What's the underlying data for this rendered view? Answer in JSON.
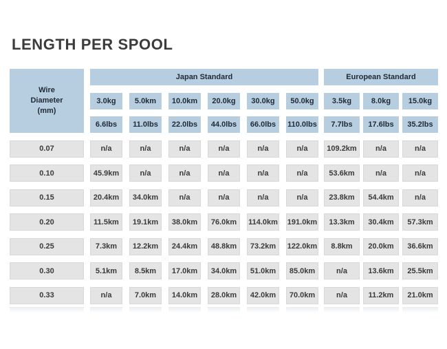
{
  "title": "LENGTH PER SPOOL",
  "colors": {
    "header_blue": "#b7cde0",
    "cell_gray": "#e4e4e4",
    "cell_border": "#d8d8d8",
    "header_text": "#1f2a35",
    "value_text": "#3a3a3a",
    "title_text": "#3b3b3b"
  },
  "table": {
    "corner_header": [
      "Wire",
      "Diameter",
      "(mm)"
    ],
    "groups": [
      {
        "label": "Japan Standard",
        "col_span": 6
      },
      {
        "label": "European Standard",
        "col_span": 3
      }
    ],
    "kg_headers": [
      "3.0kg",
      "5.0km",
      "10.0km",
      "20.0kg",
      "30.0kg",
      "50.0kg",
      "3.5kg",
      "8.0kg",
      "15.0kg"
    ],
    "lbs_headers": [
      "6.6lbs",
      "11.0lbs",
      "22.0lbs",
      "44.0lbs",
      "66.0lbs",
      "110.0lbs",
      "7.7lbs",
      "17.6lbs",
      "35.2lbs"
    ],
    "rows": [
      {
        "diameter": "0.07",
        "values": [
          "n/a",
          "n/a",
          "n/a",
          "n/a",
          "n/a",
          "n/a",
          "109.2km",
          "n/a",
          "n/a"
        ]
      },
      {
        "diameter": "0.10",
        "values": [
          "45.9km",
          "n/a",
          "n/a",
          "n/a",
          "n/a",
          "n/a",
          "53.6km",
          "n/a",
          "n/a"
        ]
      },
      {
        "diameter": "0.15",
        "values": [
          "20.4km",
          "34.0km",
          "n/a",
          "n/a",
          "n/a",
          "n/a",
          "23.8km",
          "54.4km",
          "n/a"
        ]
      },
      {
        "diameter": "0.20",
        "values": [
          "11.5km",
          "19.1km",
          "38.0km",
          "76.0km",
          "114.0km",
          "191.0km",
          "13.3km",
          "30.4km",
          "57.3km"
        ]
      },
      {
        "diameter": "0.25",
        "values": [
          "7.3km",
          "12.2km",
          "24.4km",
          "48.8km",
          "73.2km",
          "122.0km",
          "8.8km",
          "20.0km",
          "36.6km"
        ]
      },
      {
        "diameter": "0.30",
        "values": [
          "5.1km",
          "8.5km",
          "17.0km",
          "34.0km",
          "51.0km",
          "85.0km",
          "n/a",
          "13.6km",
          "25.5km"
        ]
      },
      {
        "diameter": "0.33",
        "values": [
          "n/a",
          "7.0km",
          "14.0km",
          "28.0km",
          "42.0km",
          "70.0km",
          "n/a",
          "11.2km",
          "21.0km"
        ]
      }
    ]
  }
}
